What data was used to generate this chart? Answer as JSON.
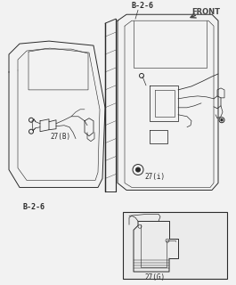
{
  "bg_color": "#f2f2f2",
  "line_color": "#2a2a2a",
  "label_b26_top": "B-2-6",
  "label_b26_bottom": "B-2-6",
  "label_front": "FRONT",
  "label_27b": "27(B)",
  "label_27i": "27(i)",
  "label_27g": "27(G)",
  "annotation_fontsize": 5.5,
  "bold_fontsize": 6.0,
  "lw": 0.7
}
